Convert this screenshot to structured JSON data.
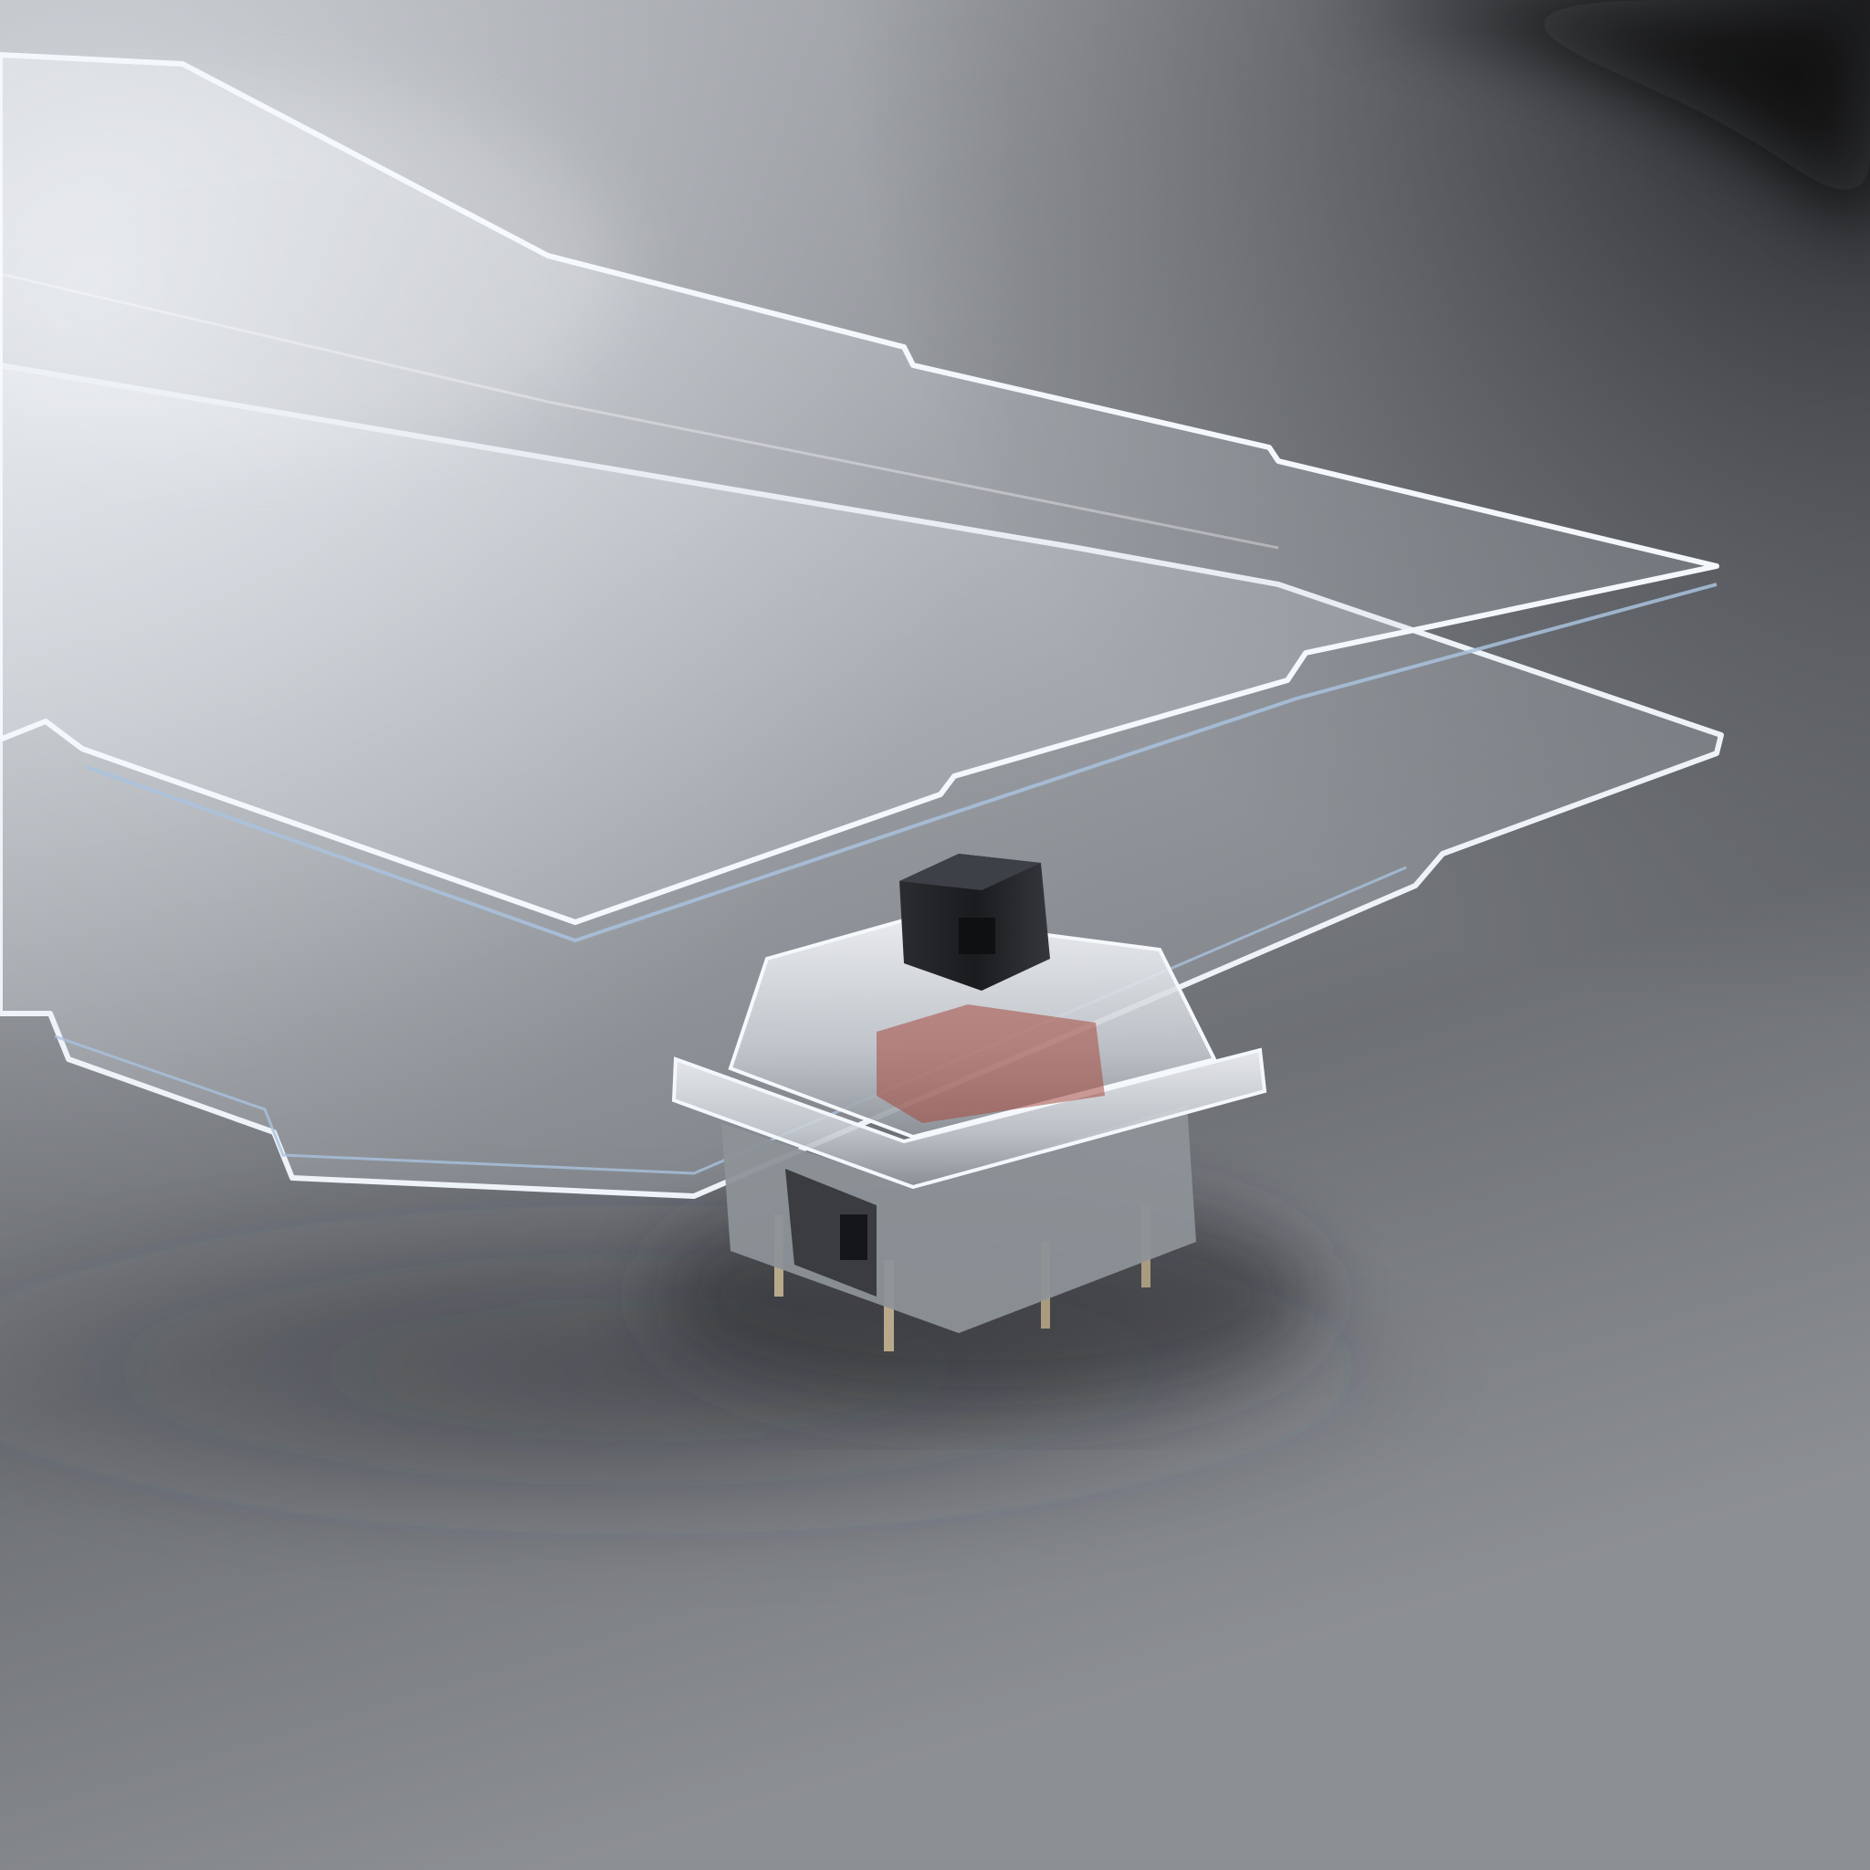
{
  "scene": {
    "colors": {
      "surface_light": "#b9bcc1",
      "surface_mid": "#8e9196",
      "surface_dark": "#5f6267",
      "surface_shadow": "#55575b",
      "backdrop_dark": "#1c1d20",
      "acrylic_tint": "#dfe6ee",
      "acrylic_edge": "#f4f8fc",
      "acrylic_edge_blue": "#a9c2de",
      "stem_black": "#1e2023",
      "stem_highlight": "#3d4046",
      "housing_clear": "#e9edf1",
      "housing_shade": "#9fa4ab",
      "switch_red_tint": "#a5483e",
      "pin_metal": "#b8a98a"
    },
    "subjects": [
      {
        "name": "surface",
        "icon": "gray-tabletop"
      },
      {
        "name": "upper-plate",
        "icon": "clear-acrylic-plate"
      },
      {
        "name": "lower-plate",
        "icon": "clear-acrylic-plate"
      },
      {
        "name": "switch",
        "icon": "mechanical-keyboard-switch"
      }
    ]
  }
}
